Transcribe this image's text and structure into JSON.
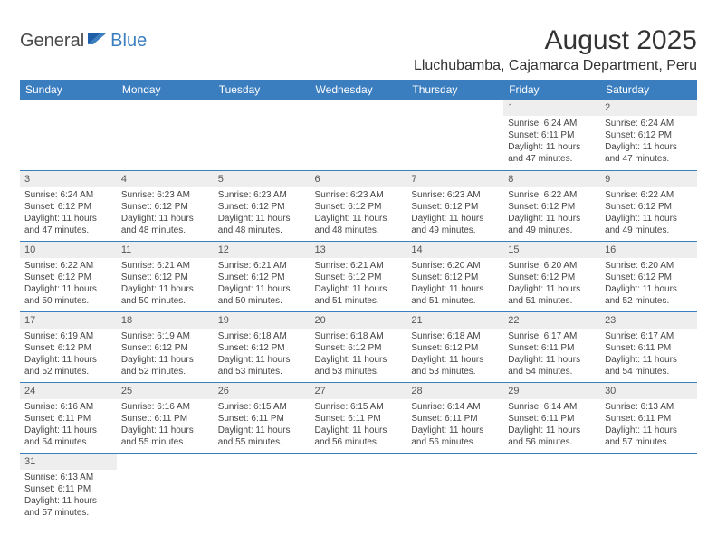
{
  "brand": {
    "part1": "General",
    "part2": "Blue"
  },
  "title": "August 2025",
  "location": "Lluchubamba, Cajamarca Department, Peru",
  "colors": {
    "header_bg": "#3b7ec0",
    "header_text": "#ffffff",
    "daynum_bg": "#eeeeee",
    "cell_border": "#3b7ec0",
    "body_text": "#444444",
    "page_bg": "#ffffff"
  },
  "weekdays": [
    "Sunday",
    "Monday",
    "Tuesday",
    "Wednesday",
    "Thursday",
    "Friday",
    "Saturday"
  ],
  "weeks": [
    [
      null,
      null,
      null,
      null,
      null,
      {
        "n": "1",
        "sr": "6:24 AM",
        "ss": "6:11 PM",
        "dl": "11 hours and 47 minutes."
      },
      {
        "n": "2",
        "sr": "6:24 AM",
        "ss": "6:12 PM",
        "dl": "11 hours and 47 minutes."
      }
    ],
    [
      {
        "n": "3",
        "sr": "6:24 AM",
        "ss": "6:12 PM",
        "dl": "11 hours and 47 minutes."
      },
      {
        "n": "4",
        "sr": "6:23 AM",
        "ss": "6:12 PM",
        "dl": "11 hours and 48 minutes."
      },
      {
        "n": "5",
        "sr": "6:23 AM",
        "ss": "6:12 PM",
        "dl": "11 hours and 48 minutes."
      },
      {
        "n": "6",
        "sr": "6:23 AM",
        "ss": "6:12 PM",
        "dl": "11 hours and 48 minutes."
      },
      {
        "n": "7",
        "sr": "6:23 AM",
        "ss": "6:12 PM",
        "dl": "11 hours and 49 minutes."
      },
      {
        "n": "8",
        "sr": "6:22 AM",
        "ss": "6:12 PM",
        "dl": "11 hours and 49 minutes."
      },
      {
        "n": "9",
        "sr": "6:22 AM",
        "ss": "6:12 PM",
        "dl": "11 hours and 49 minutes."
      }
    ],
    [
      {
        "n": "10",
        "sr": "6:22 AM",
        "ss": "6:12 PM",
        "dl": "11 hours and 50 minutes."
      },
      {
        "n": "11",
        "sr": "6:21 AM",
        "ss": "6:12 PM",
        "dl": "11 hours and 50 minutes."
      },
      {
        "n": "12",
        "sr": "6:21 AM",
        "ss": "6:12 PM",
        "dl": "11 hours and 50 minutes."
      },
      {
        "n": "13",
        "sr": "6:21 AM",
        "ss": "6:12 PM",
        "dl": "11 hours and 51 minutes."
      },
      {
        "n": "14",
        "sr": "6:20 AM",
        "ss": "6:12 PM",
        "dl": "11 hours and 51 minutes."
      },
      {
        "n": "15",
        "sr": "6:20 AM",
        "ss": "6:12 PM",
        "dl": "11 hours and 51 minutes."
      },
      {
        "n": "16",
        "sr": "6:20 AM",
        "ss": "6:12 PM",
        "dl": "11 hours and 52 minutes."
      }
    ],
    [
      {
        "n": "17",
        "sr": "6:19 AM",
        "ss": "6:12 PM",
        "dl": "11 hours and 52 minutes."
      },
      {
        "n": "18",
        "sr": "6:19 AM",
        "ss": "6:12 PM",
        "dl": "11 hours and 52 minutes."
      },
      {
        "n": "19",
        "sr": "6:18 AM",
        "ss": "6:12 PM",
        "dl": "11 hours and 53 minutes."
      },
      {
        "n": "20",
        "sr": "6:18 AM",
        "ss": "6:12 PM",
        "dl": "11 hours and 53 minutes."
      },
      {
        "n": "21",
        "sr": "6:18 AM",
        "ss": "6:12 PM",
        "dl": "11 hours and 53 minutes."
      },
      {
        "n": "22",
        "sr": "6:17 AM",
        "ss": "6:11 PM",
        "dl": "11 hours and 54 minutes."
      },
      {
        "n": "23",
        "sr": "6:17 AM",
        "ss": "6:11 PM",
        "dl": "11 hours and 54 minutes."
      }
    ],
    [
      {
        "n": "24",
        "sr": "6:16 AM",
        "ss": "6:11 PM",
        "dl": "11 hours and 54 minutes."
      },
      {
        "n": "25",
        "sr": "6:16 AM",
        "ss": "6:11 PM",
        "dl": "11 hours and 55 minutes."
      },
      {
        "n": "26",
        "sr": "6:15 AM",
        "ss": "6:11 PM",
        "dl": "11 hours and 55 minutes."
      },
      {
        "n": "27",
        "sr": "6:15 AM",
        "ss": "6:11 PM",
        "dl": "11 hours and 56 minutes."
      },
      {
        "n": "28",
        "sr": "6:14 AM",
        "ss": "6:11 PM",
        "dl": "11 hours and 56 minutes."
      },
      {
        "n": "29",
        "sr": "6:14 AM",
        "ss": "6:11 PM",
        "dl": "11 hours and 56 minutes."
      },
      {
        "n": "30",
        "sr": "6:13 AM",
        "ss": "6:11 PM",
        "dl": "11 hours and 57 minutes."
      }
    ],
    [
      {
        "n": "31",
        "sr": "6:13 AM",
        "ss": "6:11 PM",
        "dl": "11 hours and 57 minutes."
      },
      null,
      null,
      null,
      null,
      null,
      null
    ]
  ],
  "labels": {
    "sunrise": "Sunrise:",
    "sunset": "Sunset:",
    "daylight": "Daylight:"
  }
}
